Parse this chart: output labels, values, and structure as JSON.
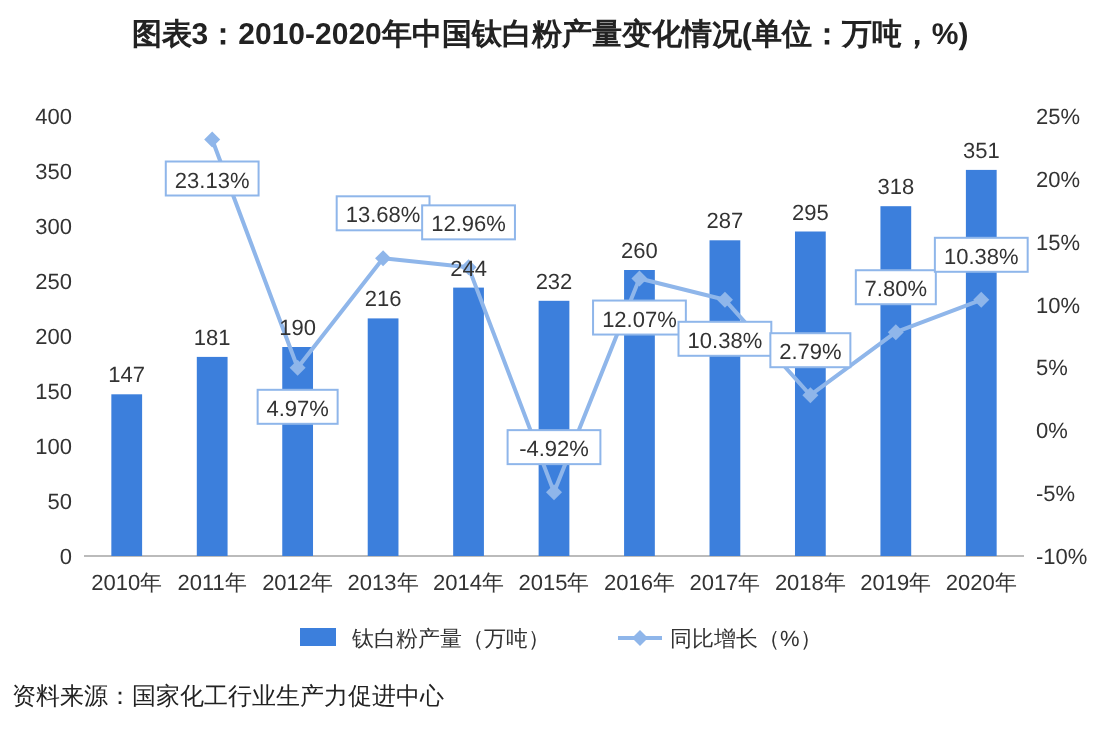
{
  "chart_data": {
    "type": "bar",
    "title": "图表3：2010-2020年中国钛白粉产量变化情况(单位：万吨，%)",
    "categories": [
      "2010年",
      "2011年",
      "2012年",
      "2013年",
      "2014年",
      "2015年",
      "2016年",
      "2017年",
      "2018年",
      "2019年",
      "2020年"
    ],
    "series": [
      {
        "name": "钛白粉产量（万吨）",
        "color": "#3c7fdc",
        "values": [
          147,
          181,
          190,
          216,
          244,
          232,
          260,
          287,
          295,
          318,
          351
        ],
        "value_labels": [
          "147",
          "181",
          "190",
          "216",
          "244",
          "232",
          "260",
          "287",
          "295",
          "318",
          "351"
        ]
      },
      {
        "name": "同比增长（%）",
        "type": "line",
        "axis": "y2",
        "color": "#8fb6ea",
        "marker": "diamond",
        "values": [
          null,
          23.13,
          4.97,
          13.68,
          12.96,
          -4.92,
          12.07,
          10.38,
          2.79,
          7.8,
          10.38
        ],
        "value_labels": [
          null,
          "23.13%",
          "4.97%",
          "13.68%",
          "12.96%",
          "-4.92%",
          "12.07%",
          "10.38%",
          "2.79%",
          "7.80%",
          "10.38%"
        ]
      }
    ],
    "ylim": [
      0,
      400
    ],
    "yticks": [
      0,
      50,
      100,
      150,
      200,
      250,
      300,
      350,
      400
    ],
    "y2lim": [
      -10,
      25
    ],
    "y2ticks": [
      {
        "value": -10,
        "label": "-10%"
      },
      {
        "value": -5,
        "label": "-5%"
      },
      {
        "value": 0,
        "label": "0%"
      },
      {
        "value": 5,
        "label": "5%"
      },
      {
        "value": 10,
        "label": "10%"
      },
      {
        "value": 15,
        "label": "15%"
      },
      {
        "value": 20,
        "label": "20%"
      },
      {
        "value": 25,
        "label": "25%"
      }
    ],
    "legend": "bottom",
    "annotations": [
      "资料来源：国家化工行业生产力促进中心"
    ]
  }
}
